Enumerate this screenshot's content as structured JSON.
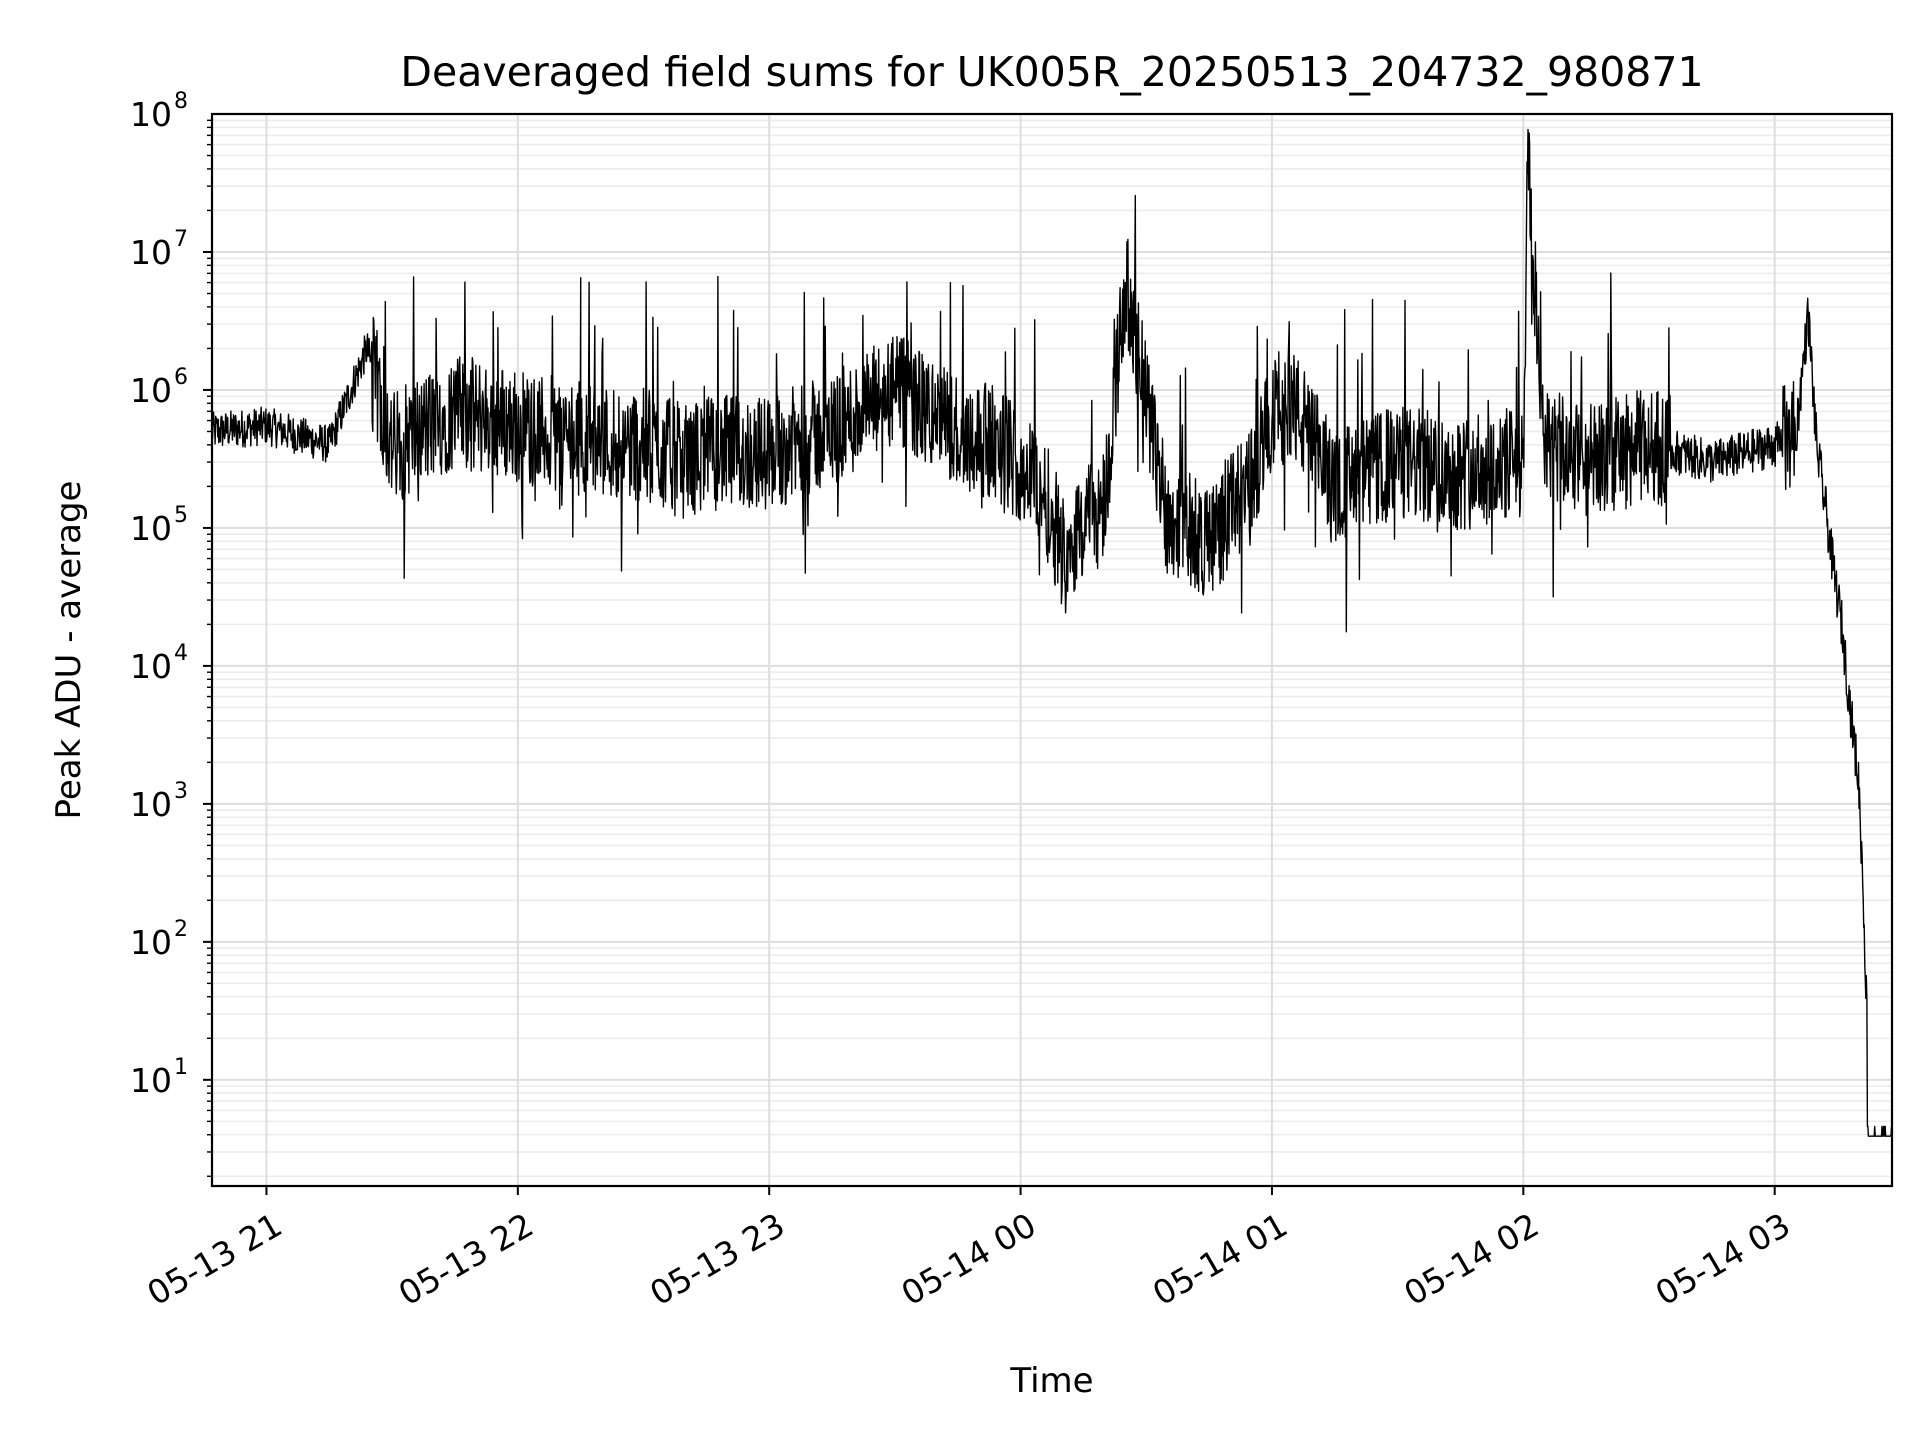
{
  "chart_data": {
    "type": "line",
    "title": "Deaveraged field sums for UK005R_20250513_204732_980871",
    "xlabel": "Time",
    "ylabel": "Peak ADU - average",
    "yscale": "log",
    "xlim": [
      "05-13 20:47",
      "05-14 03:28"
    ],
    "ylim": [
      1.7,
      100000000
    ],
    "grid": "major and minor, light gray",
    "line_color": "#000000",
    "x_ticks": [
      "05-13 21",
      "05-13 22",
      "05-13 23",
      "05-14 00",
      "05-14 01",
      "05-14 02",
      "05-14 03"
    ],
    "y_ticks": [
      {
        "base": "10",
        "exp": "1",
        "value": 10
      },
      {
        "base": "10",
        "exp": "2",
        "value": 100
      },
      {
        "base": "10",
        "exp": "3",
        "value": 1000
      },
      {
        "base": "10",
        "exp": "4",
        "value": 10000
      },
      {
        "base": "10",
        "exp": "5",
        "value": 100000
      },
      {
        "base": "10",
        "exp": "6",
        "value": 1000000
      },
      {
        "base": "10",
        "exp": "7",
        "value": 10000000
      },
      {
        "base": "10",
        "exp": "8",
        "value": 100000000
      }
    ],
    "series": [
      {
        "x": [
          "05-13 20:47",
          "05-13 21:00",
          "05-13 21:15",
          "05-13 21:24",
          "05-13 21:30",
          "05-13 21:45",
          "05-13 21:55",
          "05-13 22:05",
          "05-13 22:15",
          "05-13 22:30",
          "05-13 22:40",
          "05-13 22:45",
          "05-13 23:00",
          "05-13 23:15",
          "05-13 23:30",
          "05-13 23:45",
          "05-13 23:55",
          "05-14 00:05",
          "05-14 00:10",
          "05-14 00:20",
          "05-14 00:25",
          "05-14 00:35",
          "05-14 00:45",
          "05-14 00:55",
          "05-14 01:00",
          "05-14 01:05",
          "05-14 01:15",
          "05-14 01:30",
          "05-14 01:45",
          "05-14 02:00",
          "05-14 02:01",
          "05-14 02:05",
          "05-14 02:15",
          "05-14 02:30",
          "05-14 02:45",
          "05-14 03:00",
          "05-14 03:05",
          "05-14 03:08",
          "05-14 03:10",
          "05-14 03:12",
          "05-14 03:14",
          "05-14 03:16",
          "05-14 03:18",
          "05-14 03:20",
          "05-14 03:21",
          "05-14 03:22",
          "05-14 03:28"
        ],
        "y": [
          500000,
          550000,
          400000,
          2000000,
          380000,
          700000,
          600000,
          500000,
          450000,
          400000,
          300000,
          350000,
          350000,
          500000,
          1000000,
          500000,
          400000,
          200000,
          70000,
          150000,
          6000000,
          120000,
          80000,
          200000,
          700000,
          800000,
          200000,
          300000,
          250000,
          300000,
          45000000,
          400000,
          300000,
          400000,
          300000,
          400000,
          450000,
          3500000,
          400000,
          150000,
          50000,
          20000,
          5000,
          1500,
          300,
          30,
          4
        ]
      }
    ]
  }
}
